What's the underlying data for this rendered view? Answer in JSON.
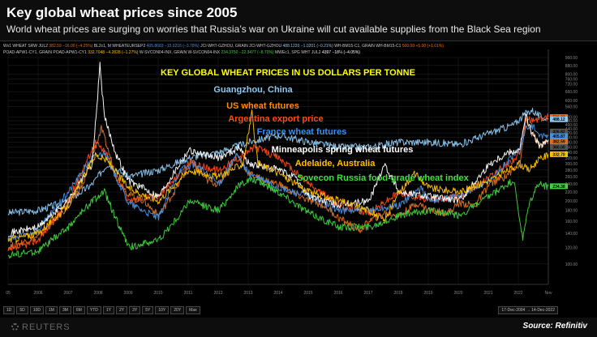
{
  "title": "Key global wheat prices since 2005",
  "subtitle": "World wheat prices are surging on worries that Russia’s war on Ukraine will cut available supplies from the Black Sea region",
  "terminal": {
    "legend_row1": [
      {
        "label": "Wv1  WHEAT SRW JUL2",
        "value": "382.59 −16.00 (−4.25%)",
        "cls": "v1"
      },
      {
        "label": "BL2c1, M WHEATEURSEP2",
        "value": "405.8683 −15.0216 (−3.78%)",
        "cls": "v2"
      },
      {
        "label": "JCI-WHT-GZHOU, GRAIN JCI-WHT-GZHOU",
        "value": "488.1220 −1.0201 (−0.21%)",
        "cls": "v3"
      },
      {
        "label": "WH-BM15-C1, GRAIN WH-BM15-C1",
        "value": "500.00 +5.00 (+1.01%)",
        "cls": "v4"
      }
    ],
    "legend_row2": [
      {
        "label": "POAD-APW1-CY1, GRAIN POAD-APW1-CY1",
        "value": "332.7048 −4.2828 (−1.27%)",
        "cls": "v5"
      },
      {
        "label": "W-SVCON04-INX, GRAIN W-SVCON04-INX",
        "value": "234.3750 −22.3477 (−8.70%)",
        "cls": "v6"
      },
      {
        "label": "MWEc1, SPG WHT JUL2",
        "value": "4397 −18¼ (−4.05%)",
        "cls": "v7"
      }
    ],
    "timeframes": [
      "1D",
      "5D",
      "10D",
      "1M",
      "3M",
      "6M",
      "YTD",
      "1Y",
      "2Y",
      "3Y",
      "5Y",
      "10Y",
      "20Y",
      "Max"
    ],
    "date_range": "17-Dec-2004 → 14-Dec-2022"
  },
  "footer": {
    "brand": "REUTERS",
    "source": "Source: Refinitiv"
  },
  "chart_data": {
    "type": "line",
    "title": "KEY GLOBAL WHEAT PRICES IN US DOLLARS PER TONNE",
    "xlabel": "",
    "ylabel": "",
    "xlim": [
      2005,
      2022.95
    ],
    "ylim": [
      80,
      960
    ],
    "y_scale": "log",
    "x_ticks": [
      "05",
      "2006",
      "2007",
      "2008",
      "2009",
      "2010",
      "2011",
      "2012",
      "2013",
      "2014",
      "2015",
      "2016",
      "2017",
      "2018",
      "2019",
      "2020",
      "2021",
      "2022",
      "Nov"
    ],
    "y_ticks": [
      100,
      120,
      140,
      160,
      180,
      200,
      220,
      240,
      260,
      280,
      300,
      320,
      340,
      360,
      380,
      400,
      420,
      440,
      460,
      480,
      500,
      560,
      600,
      660,
      720,
      760,
      800,
      880,
      960
    ],
    "last_value_labels": [
      {
        "value": "500.00",
        "color": "#ff6a00"
      },
      {
        "value": "488.12",
        "color": "#8ec8f0"
      },
      {
        "value": "426.82",
        "color": "#555"
      },
      {
        "value": "405.87",
        "color": "#4a90e0"
      },
      {
        "value": "382.59",
        "color": "#e07020"
      },
      {
        "value": "360.00",
        "color": "#555"
      },
      {
        "value": "332.70",
        "color": "#ffc000"
      },
      {
        "value": "234.38",
        "color": "#40d040"
      }
    ],
    "series": [
      {
        "name": "Guangzhou, China",
        "color": "#8ec8f0",
        "x": [
          2005,
          2006,
          2007,
          2007.8,
          2008.3,
          2009,
          2010,
          2011,
          2012,
          2013,
          2014,
          2015,
          2016,
          2017,
          2018,
          2019,
          2020,
          2021,
          2021.8,
          2022.2,
          2022.4,
          2022.7,
          2022.95
        ],
        "values": [
          175,
          180,
          200,
          240,
          300,
          260,
          280,
          320,
          340,
          380,
          410,
          380,
          360,
          360,
          380,
          380,
          370,
          420,
          460,
          520,
          540,
          500,
          488
        ]
      },
      {
        "name": "US wheat futures",
        "color": "#e07020",
        "x": [
          2005,
          2006,
          2006.8,
          2007.5,
          2008.1,
          2008.6,
          2009,
          2009.5,
          2010,
          2010.6,
          2011.1,
          2011.6,
          2012,
          2012.6,
          2013,
          2013.5,
          2014,
          2014.4,
          2015,
          2015.5,
          2016,
          2016.7,
          2017,
          2017.5,
          2018,
          2018.6,
          2019,
          2019.6,
          2020,
          2020.5,
          2021,
          2021.5,
          2022,
          2022.2,
          2022.4,
          2022.7,
          2022.95
        ],
        "values": [
          120,
          135,
          175,
          240,
          440,
          260,
          215,
          200,
          170,
          230,
          310,
          250,
          240,
          330,
          270,
          250,
          240,
          220,
          200,
          190,
          165,
          145,
          160,
          175,
          170,
          195,
          180,
          175,
          195,
          190,
          240,
          260,
          300,
          480,
          420,
          360,
          383
        ]
      },
      {
        "name": "Argentina export price",
        "color": "#ff4a1a",
        "x": [
          2005,
          2006,
          2007,
          2007.9,
          2008.3,
          2009,
          2010,
          2011,
          2012,
          2012.8,
          2013.2,
          2014,
          2015,
          2016,
          2017,
          2018,
          2019,
          2020,
          2021,
          2022,
          2022.2,
          2022.4,
          2022.95
        ],
        "values": [
          115,
          130,
          200,
          380,
          330,
          200,
          210,
          300,
          280,
          330,
          360,
          320,
          240,
          190,
          175,
          220,
          200,
          210,
          260,
          330,
          500,
          480,
          500
        ]
      },
      {
        "name": "France wheat futures",
        "color": "#4a90e0",
        "x": [
          2005,
          2006,
          2007,
          2007.8,
          2008.2,
          2009,
          2010,
          2010.7,
          2011.2,
          2012,
          2012.6,
          2013,
          2014,
          2015,
          2016,
          2017,
          2018,
          2018.7,
          2019,
          2020,
          2021,
          2021.8,
          2022,
          2022.2,
          2022.4,
          2022.7,
          2022.95
        ],
        "values": [
          130,
          145,
          220,
          320,
          340,
          195,
          165,
          280,
          300,
          240,
          330,
          270,
          230,
          210,
          180,
          180,
          190,
          230,
          200,
          210,
          250,
          330,
          350,
          440,
          460,
          400,
          406
        ]
      },
      {
        "name": "Minneapolis spring wheat futures",
        "color": "#ffffff",
        "x": [
          2005,
          2006,
          2007,
          2007.8,
          2008.05,
          2008.2,
          2008.6,
          2009,
          2010,
          2011,
          2011.5,
          2012,
          2012.7,
          2013,
          2014,
          2014.5,
          2015,
          2016,
          2017,
          2017.5,
          2018,
          2019,
          2020,
          2021,
          2021.6,
          2022,
          2022.2,
          2022.4,
          2022.7,
          2022.95
        ],
        "values": [
          140,
          150,
          200,
          300,
          880,
          500,
          330,
          250,
          210,
          350,
          330,
          320,
          360,
          300,
          280,
          260,
          210,
          190,
          200,
          300,
          220,
          210,
          200,
          300,
          340,
          350,
          510,
          420,
          360,
          390
        ]
      },
      {
        "name": "Adelaide, Australia",
        "color": "#ffc000",
        "x": [
          2005,
          2006,
          2007,
          2007.9,
          2008.3,
          2009,
          2010,
          2011,
          2012,
          2012.8,
          2013.1,
          2013.3,
          2014,
          2015,
          2016,
          2017,
          2017.5,
          2018,
          2018.5,
          2019,
          2020,
          2021,
          2022,
          2022.3,
          2022.6,
          2022.95
        ],
        "values": [
          130,
          140,
          190,
          330,
          310,
          230,
          200,
          280,
          260,
          300,
          520,
          300,
          270,
          220,
          200,
          180,
          160,
          220,
          270,
          230,
          220,
          250,
          300,
          280,
          310,
          333
        ]
      },
      {
        "name": "Sovecon Russia food-grade wheat index",
        "color": "#40d040",
        "x": [
          2005,
          2006,
          2007,
          2007.8,
          2008.2,
          2008.8,
          2009,
          2010,
          2010.7,
          2011,
          2012,
          2012.7,
          2013,
          2013.2,
          2013.5,
          2014,
          2015,
          2016,
          2017,
          2018,
          2019,
          2020,
          2021,
          2021.8,
          2022.1,
          2022.3,
          2022.6,
          2022.95
        ],
        "values": [
          110,
          115,
          150,
          200,
          220,
          140,
          120,
          130,
          170,
          200,
          180,
          240,
          250,
          250,
          240,
          220,
          175,
          150,
          150,
          170,
          180,
          170,
          210,
          250,
          130,
          190,
          240,
          234
        ]
      }
    ],
    "annotations": [
      {
        "text": "KEY GLOBAL WHEAT PRICES IN US DOLLARS PER TONNE",
        "color": "#ffff00",
        "size": 11
      },
      {
        "text": "Guangzhou, China",
        "color": "#8ec8f0",
        "size": 11
      },
      {
        "text": "US wheat futures",
        "color": "#ff8c00",
        "size": 11
      },
      {
        "text": "Argentina export price",
        "color": "#ff4a1a",
        "size": 11
      },
      {
        "text": "France wheat futures",
        "color": "#3a8ff0",
        "size": 11
      },
      {
        "text": "Minneapolis spring wheat futures",
        "color": "#ffffff",
        "size": 11
      },
      {
        "text": "Adelaide, Australia",
        "color": "#ffc000",
        "size": 11
      },
      {
        "text": "Sovecon Russia food-grade wheat index",
        "color": "#40e040",
        "size": 11
      }
    ]
  }
}
